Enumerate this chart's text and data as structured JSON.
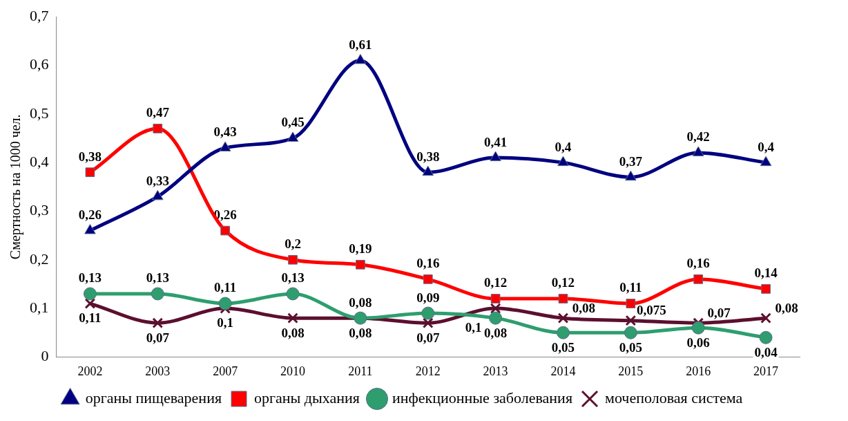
{
  "chart_data": {
    "type": "line",
    "ylabel": "Смертность на 1000 чел.",
    "categories": [
      "2002",
      "2003",
      "2007",
      "2010",
      "2011",
      "2012",
      "2013",
      "2014",
      "2015",
      "2016",
      "2017"
    ],
    "ylim": [
      0,
      0.7
    ],
    "yticks": [
      {
        "value": 0,
        "label": "0"
      },
      {
        "value": 0.1,
        "label": "0,1"
      },
      {
        "value": 0.2,
        "label": "0,2"
      },
      {
        "value": 0.3,
        "label": "0,3"
      },
      {
        "value": 0.4,
        "label": "0,4"
      },
      {
        "value": 0.5,
        "label": "0,5"
      },
      {
        "value": 0.6,
        "label": "0,6"
      },
      {
        "value": 0.7,
        "label": "0,7"
      }
    ],
    "grid": false,
    "legend": "bottom",
    "line_style": "solid",
    "series": [
      {
        "name": "органы пищеварения",
        "color": "#000080",
        "marker": "triangle",
        "values": [
          0.26,
          0.33,
          0.43,
          0.45,
          0.61,
          0.38,
          0.41,
          0.4,
          0.37,
          0.42,
          0.4
        ],
        "value_labels": [
          "0,26",
          "0,33",
          "0,43",
          "0,45",
          "0,61",
          "0,38",
          "0,41",
          "0,4",
          "0,37",
          "0,42",
          "0,4"
        ]
      },
      {
        "name": "органы дыхания",
        "color": "#ff0000",
        "marker": "square",
        "values": [
          0.38,
          0.47,
          0.26,
          0.2,
          0.19,
          0.16,
          0.12,
          0.12,
          0.11,
          0.16,
          0.14
        ],
        "value_labels": [
          "0,38",
          "0,47",
          "0,26",
          "0,2",
          "0,19",
          "0,16",
          "0,12",
          "0,12",
          "0,11",
          "0,16",
          "0,14"
        ]
      },
      {
        "name": "инфекционные заболевания",
        "color": "#2e9e6e",
        "marker": "circle",
        "values": [
          0.13,
          0.13,
          0.11,
          0.13,
          0.08,
          0.09,
          0.08,
          0.05,
          0.05,
          0.06,
          0.04
        ],
        "value_labels": [
          "0,13",
          "0,13",
          "0,11",
          "0,13",
          "0,08",
          "0,09",
          "0,08",
          "0,05",
          "0,05",
          "0,06",
          "0,04"
        ]
      },
      {
        "name": "мочеполовая система",
        "color": "#5c0f2e",
        "marker": "cross",
        "values": [
          0.11,
          0.07,
          0.1,
          0.08,
          0.08,
          0.07,
          0.1,
          0.08,
          0.075,
          0.07,
          0.08
        ],
        "value_labels": [
          "0,11",
          "0,07",
          "0,1",
          "0,08",
          "0,08",
          "0,07",
          "0,1",
          "0,08",
          "0,075",
          "0,07",
          "0,08"
        ]
      }
    ]
  }
}
